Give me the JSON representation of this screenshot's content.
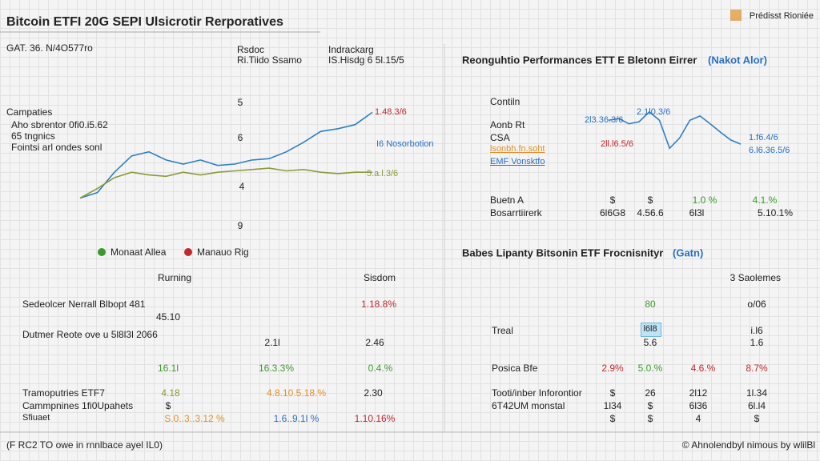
{
  "header": {
    "title": "Bitcoin ETFI 20G SEPI Ulsicrotir Rerporatives",
    "brand": "Prédisst Rioniée"
  },
  "left": {
    "date": "GAT. 36. N/4O577ro",
    "col1": [
      "Rsdoc",
      "Ri.Tiido Ssamo"
    ],
    "col2": [
      "Indrackarg",
      "IS.Hisdg 6 5l.15/5"
    ],
    "list_title": "Campaties",
    "list": [
      "Aho sbrentor 0fi0.i5.62",
      "65 tngnics",
      "Fointsi arl ondes sonl"
    ],
    "legend": [
      "Monaat Allea",
      "Manauo Rig"
    ],
    "table": {
      "headers": [
        "Rurning",
        "Sisdom"
      ],
      "cells": [
        "Sedeolcer Nerrall Blbopt 481",
        "1.18.8%",
        "45.10",
        "Dutmer Reote ove u 5l8l3l 2066",
        "2.1l",
        "2.46",
        "16.1l",
        "16.3.3%",
        "0.4.%",
        "Tramoputries ETF7",
        "4.18",
        "4.8.10.5.18.%",
        "2.30",
        "Cammpnines 1fi0Upahets",
        "$",
        "Sfiuaet",
        "S.0..3..3.12 %",
        "1.6..9.1l %",
        "1.10.16%"
      ]
    }
  },
  "right": {
    "title": "Reonguhtio Performances ETT E Bletonn Eirrer",
    "title_note": "(Nakot Alor)",
    "labels": [
      "Contiln",
      "Aonb Rt",
      "CSA",
      "lsonbh.fn.soht",
      "EMF Vonsktfo"
    ],
    "rows": [
      "Buetn A",
      "$",
      "$",
      "1.0 %",
      "4.1.%",
      "Bosarrtiirerk",
      "6l6G8",
      "4.56.6",
      "6l3l",
      "5.10.1%"
    ],
    "section_title": "Babes Lipanty Bitsonin ETF Frocnisnityr",
    "section_note": "(Gatn)",
    "table": {
      "header": "3 Saolemes",
      "cells": [
        "80",
        "o/06",
        "Treal",
        "l6l8",
        "i.l6",
        "5.6",
        "1.6",
        "Posica Bfe",
        "2.9%",
        "5.0.%",
        "4.6.%",
        "8.7%",
        "Tooti/inber Inforontior",
        "$",
        "26",
        "2l12",
        "1l.34",
        "6T42UM monstal",
        "1l34",
        "$",
        "6l36",
        "6l.l4",
        "$",
        "$",
        "4",
        "$"
      ]
    }
  },
  "chart_data": [
    {
      "type": "line",
      "ylim": [
        0,
        100
      ],
      "annotations": [
        "5",
        "6",
        "4",
        "9",
        "1.48.3/6",
        "I6 Nosorbotion",
        "5.a.l.3/6"
      ],
      "series": [
        {
          "color": "#2f7fc1",
          "values": [
            25,
            29,
            44,
            56,
            59,
            53,
            50,
            53,
            49,
            50,
            53,
            54,
            59,
            66,
            74,
            76,
            79,
            88
          ]
        },
        {
          "color": "#8a9a3a",
          "values": [
            25,
            32,
            40,
            44,
            42,
            41,
            44,
            42,
            44,
            45,
            46,
            47,
            45,
            46,
            44,
            43,
            44,
            44
          ]
        }
      ]
    },
    {
      "type": "line",
      "ylim": [
        0,
        100
      ],
      "annotations": [
        "2.1l0.3/6",
        "2l3.36.3/6",
        "2ll.l6.5/6",
        "1.f6.4/6",
        "6.l6.36.5/6"
      ],
      "series": [
        {
          "color": "#2f7fc1",
          "values": [
            69,
            72,
            62,
            66,
            85,
            69,
            15,
            35,
            69,
            77,
            62,
            46,
            31,
            23
          ]
        }
      ]
    }
  ],
  "footer": {
    "left": "(F RC2 TO owe in rnnlbace ayel IL0)",
    "right": "© Ahnolendbyl nimous by wlilBl"
  }
}
